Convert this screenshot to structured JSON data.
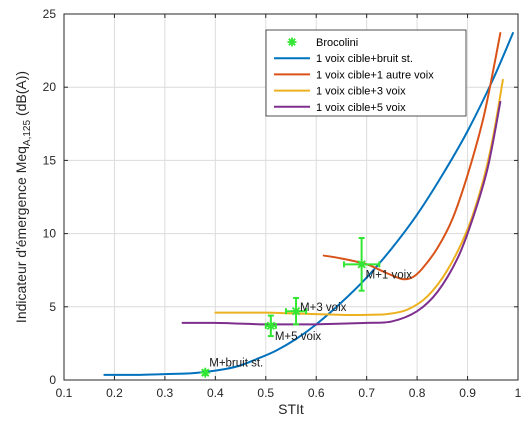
{
  "chart_data": {
    "type": "line",
    "xlabel": "STIt",
    "ylabel_main": "Indicateur d'émergence Meq",
    "ylabel_sub": "A,125",
    "ylabel_unit": " (dB(A))",
    "xlim": [
      0.1,
      1.0
    ],
    "ylim": [
      0,
      25
    ],
    "xticks": [
      "0.1",
      "0.2",
      "0.3",
      "0.4",
      "0.5",
      "0.6",
      "0.7",
      "0.8",
      "0.9",
      "1"
    ],
    "yticks": [
      "0",
      "5",
      "10",
      "15",
      "20",
      "25"
    ],
    "grid": true,
    "legend_position": "top-right",
    "series": [
      {
        "name": "1 voix cible+bruit st.",
        "color": "#0072BD",
        "x": [
          0.18,
          0.25,
          0.3,
          0.35,
          0.38,
          0.42,
          0.45,
          0.48,
          0.52,
          0.56,
          0.6,
          0.65,
          0.7,
          0.75,
          0.8,
          0.85,
          0.9,
          0.95,
          0.99
        ],
        "y": [
          0.35,
          0.35,
          0.4,
          0.45,
          0.55,
          0.75,
          1.0,
          1.4,
          2.0,
          2.8,
          3.8,
          5.3,
          7.0,
          9.0,
          11.3,
          14.0,
          17.0,
          20.5,
          23.7
        ]
      },
      {
        "name": "1 voix cible+1 autre voix",
        "color": "#D95319",
        "x": [
          0.615,
          0.65,
          0.7,
          0.74,
          0.77,
          0.79,
          0.81,
          0.84,
          0.87,
          0.9,
          0.93,
          0.95,
          0.965
        ],
        "y": [
          8.5,
          8.3,
          7.9,
          7.3,
          6.9,
          7.0,
          7.6,
          9.0,
          11.0,
          14.0,
          17.7,
          21.0,
          23.7
        ]
      },
      {
        "name": "1 voix cible+3 voix",
        "color": "#EDB120",
        "x": [
          0.4,
          0.45,
          0.5,
          0.55,
          0.6,
          0.65,
          0.7,
          0.74,
          0.78,
          0.82,
          0.86,
          0.9,
          0.93,
          0.95,
          0.97
        ],
        "y": [
          4.6,
          4.6,
          4.6,
          4.55,
          4.5,
          4.45,
          4.45,
          4.5,
          4.8,
          5.7,
          7.5,
          10.3,
          13.5,
          16.5,
          20.5
        ]
      },
      {
        "name": "1 voix cible+5 voix",
        "color": "#7E2F8E",
        "x": [
          0.335,
          0.4,
          0.45,
          0.5,
          0.55,
          0.6,
          0.65,
          0.7,
          0.75,
          0.8,
          0.84,
          0.88,
          0.91,
          0.94,
          0.965
        ],
        "y": [
          3.9,
          3.9,
          3.85,
          3.8,
          3.8,
          3.8,
          3.85,
          3.9,
          4.0,
          4.7,
          6.0,
          8.3,
          11.0,
          14.5,
          19.0
        ]
      }
    ],
    "markers": {
      "name": "Brocolini",
      "color": "#33E633",
      "points": [
        {
          "x": 0.38,
          "y": 0.5,
          "xerr": 0.0,
          "yerr": 0.15,
          "label": "M+bruit st."
        },
        {
          "x": 0.51,
          "y": 3.7,
          "xerr": 0.01,
          "yerr": 0.7,
          "label": "M+5 voix"
        },
        {
          "x": 0.56,
          "y": 4.7,
          "xerr": 0.02,
          "yerr": 0.9,
          "label": "M+3 voix"
        },
        {
          "x": 0.69,
          "y": 7.9,
          "xerr": 0.035,
          "yerr": 1.8,
          "label": "M+1 voix"
        }
      ]
    }
  }
}
